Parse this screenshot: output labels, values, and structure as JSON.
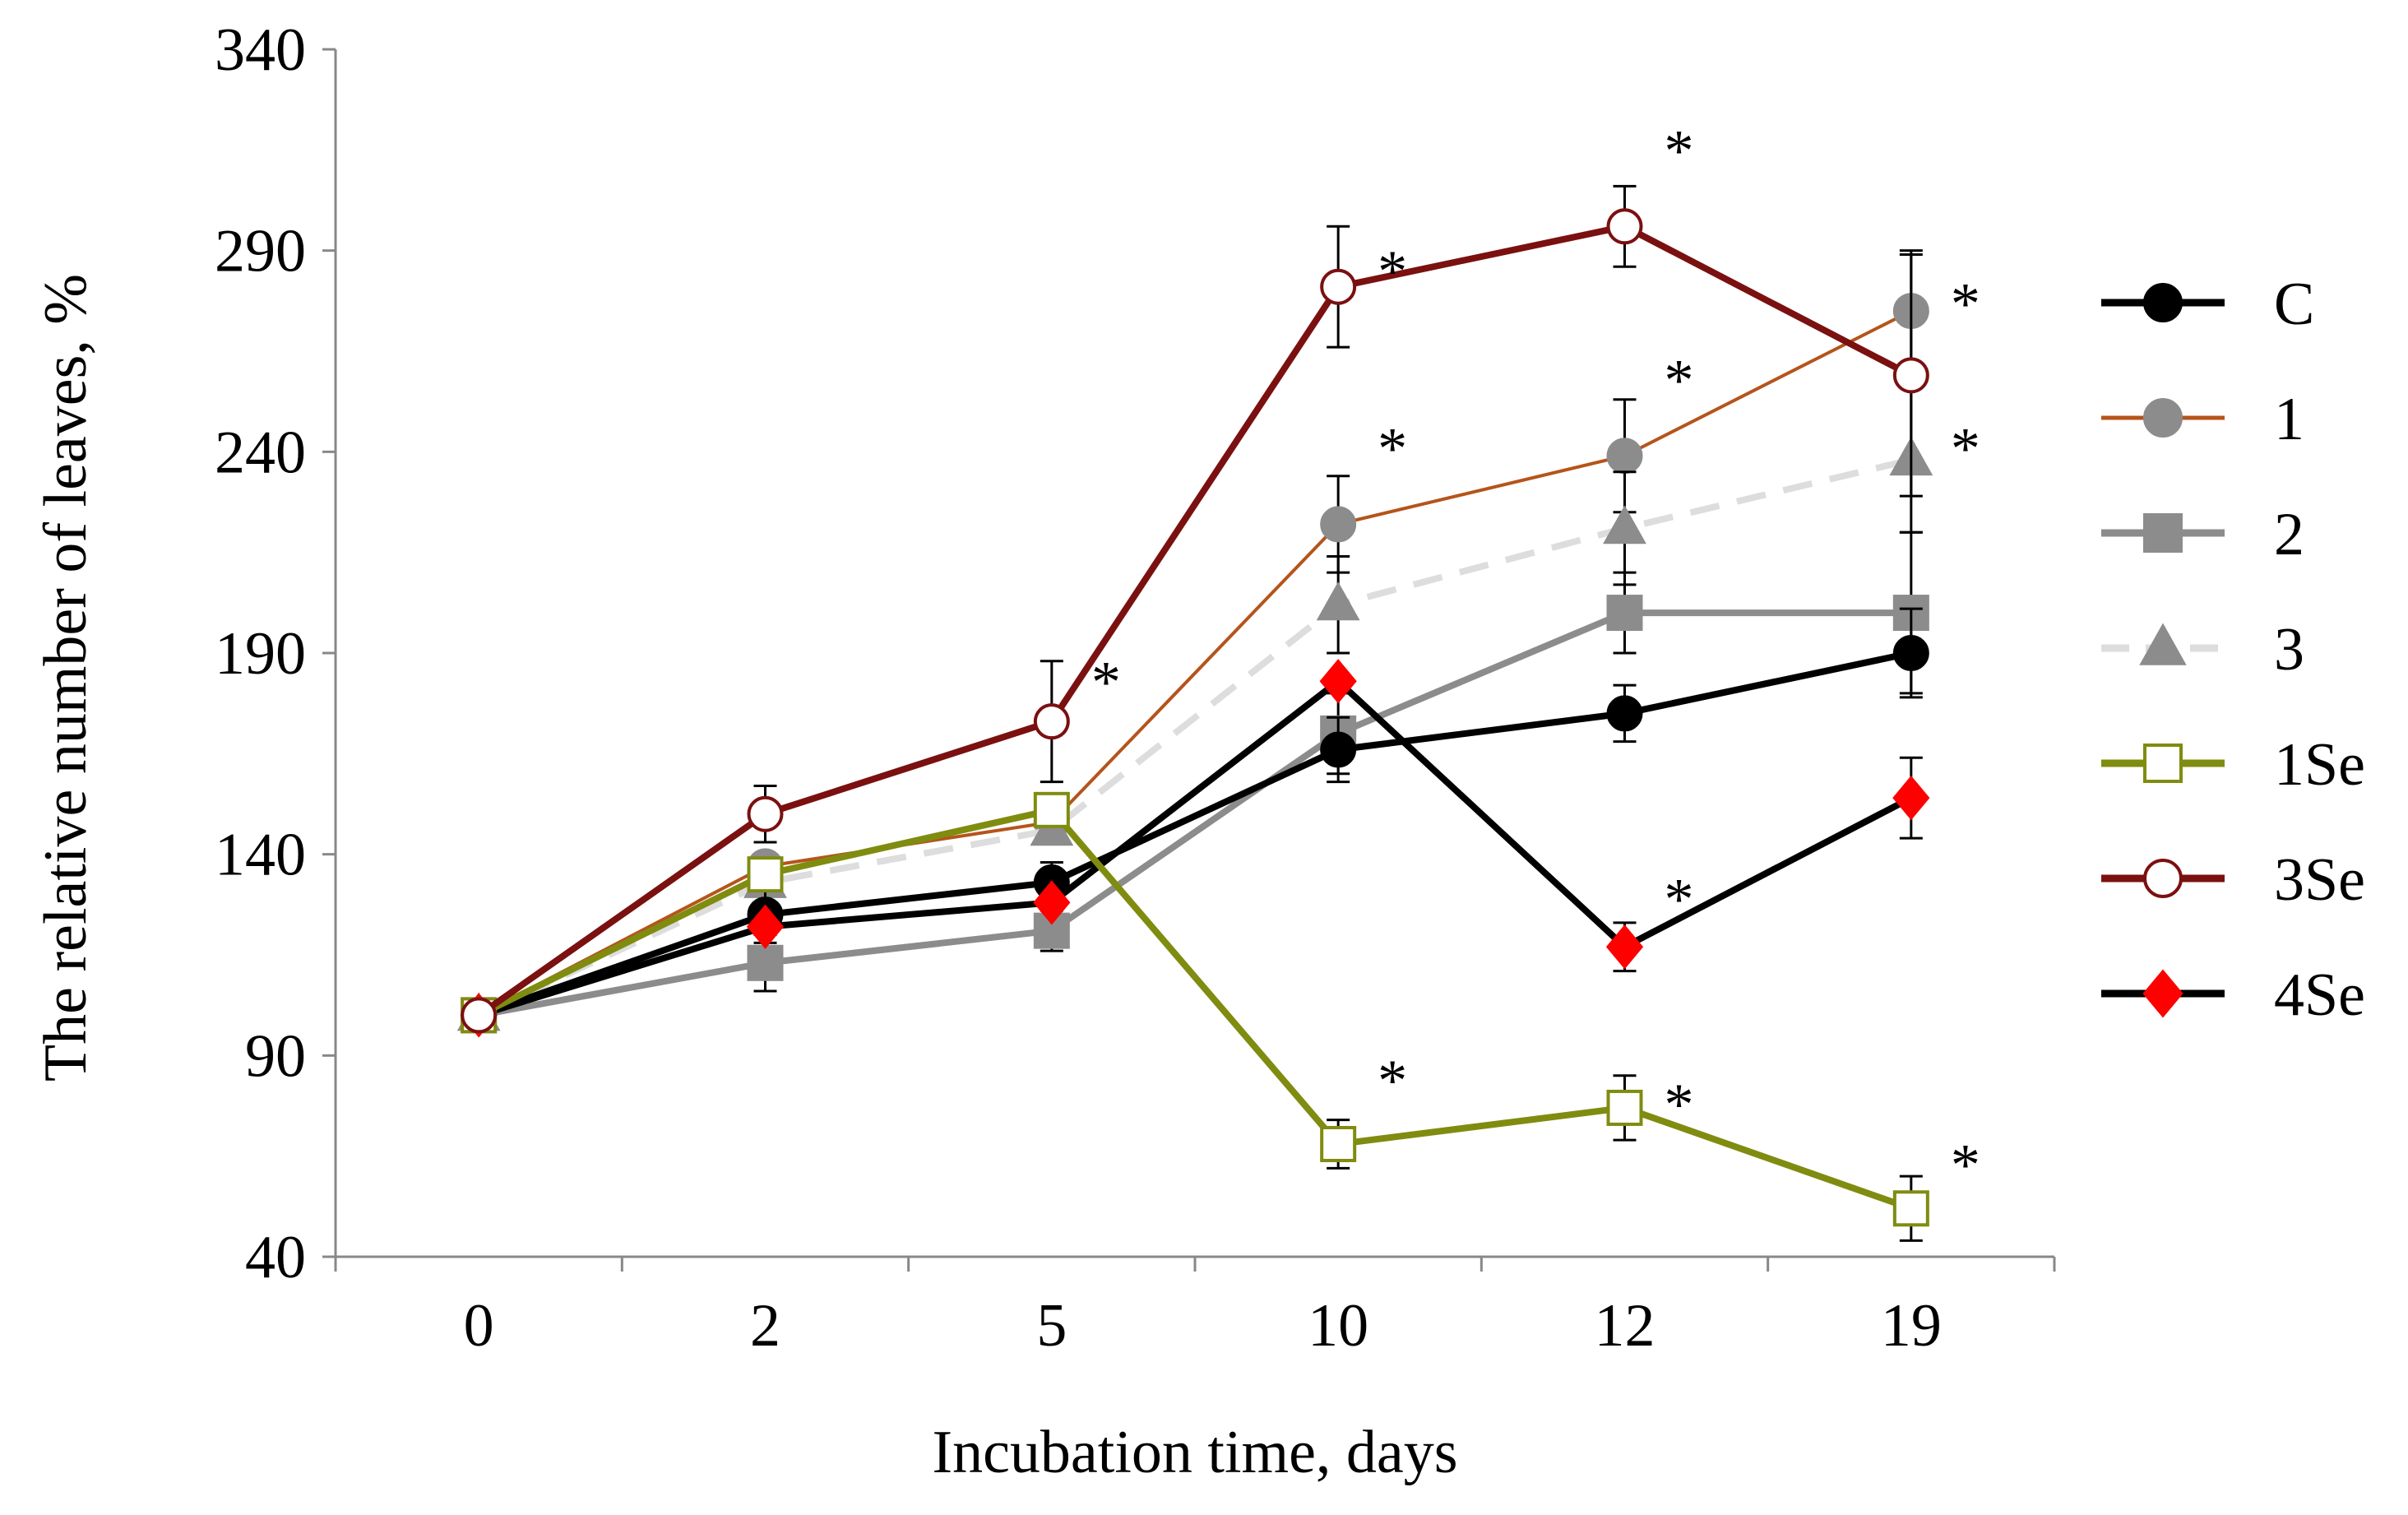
{
  "chart_data": {
    "type": "line",
    "title": "",
    "xlabel": "Incubation time, days",
    "ylabel": "The relative number of leaves, %",
    "categories": [
      "0",
      "2",
      "5",
      "10",
      "12",
      "19"
    ],
    "yticks": [
      40,
      90,
      140,
      190,
      240,
      290,
      340
    ],
    "ylim": [
      40,
      340
    ],
    "grid": false,
    "legend_position": "right",
    "series": [
      {
        "name": "1",
        "color": "#b5541b",
        "line_color": "#b5541b",
        "marker": "circle",
        "marker_fill": "#8c8c8c",
        "marker_stroke": "#8c8c8c",
        "dashed": false,
        "thin": true,
        "values": [
          100,
          137,
          148,
          222,
          239,
          275
        ],
        "errors": [
          0,
          0,
          0,
          12,
          14,
          15
        ]
      },
      {
        "name": "3",
        "color": "#dddddd",
        "line_color": "#dddddd",
        "marker": "triangle",
        "marker_fill": "#8c8c8c",
        "marker_stroke": "#8c8c8c",
        "dashed": true,
        "thin": false,
        "values": [
          100,
          133,
          146,
          202,
          221,
          238
        ],
        "errors": [
          0,
          0,
          0,
          12,
          14,
          18
        ]
      },
      {
        "name": "2",
        "color": "#8c8c8c",
        "line_color": "#8c8c8c",
        "marker": "square",
        "marker_fill": "#8c8c8c",
        "marker_stroke": "#8c8c8c",
        "dashed": false,
        "thin": false,
        "values": [
          100,
          113,
          121,
          170,
          200,
          200
        ],
        "errors": [
          0,
          7,
          5,
          10,
          10,
          20
        ]
      },
      {
        "name": "C",
        "color": "#000000",
        "line_color": "#000000",
        "marker": "circle",
        "marker_fill": "#000000",
        "marker_stroke": "#000000",
        "dashed": false,
        "thin": false,
        "values": [
          100,
          125,
          133,
          166,
          175,
          190
        ],
        "errors": [
          0,
          7,
          5,
          8,
          7,
          11
        ]
      },
      {
        "name": "4Se",
        "color": "#000000",
        "line_color": "#000000",
        "marker": "diamond",
        "marker_fill": "#ff0000",
        "marker_stroke": "#ff0000",
        "dashed": false,
        "thin": false,
        "values": [
          100,
          122,
          128,
          183,
          117,
          154
        ],
        "errors": [
          0,
          0,
          0,
          0,
          6,
          10
        ]
      },
      {
        "name": "1Se",
        "color": "#7f8c10",
        "line_color": "#7f8c10",
        "marker": "square",
        "marker_fill": "#ffffff",
        "marker_stroke": "#7f8c10",
        "dashed": false,
        "thin": false,
        "values": [
          100,
          135,
          151,
          68,
          77,
          52
        ],
        "errors": [
          0,
          0,
          0,
          6,
          8,
          8
        ]
      },
      {
        "name": "3Se",
        "color": "#7b1010",
        "line_color": "#7b1010",
        "marker": "circle",
        "marker_fill": "#ffffff",
        "marker_stroke": "#7b1010",
        "dashed": false,
        "thin": false,
        "values": [
          100,
          150,
          173,
          281,
          296,
          259
        ],
        "errors": [
          0,
          7,
          15,
          15,
          10,
          30
        ]
      }
    ],
    "legend_order": [
      "C",
      "1",
      "2",
      "3",
      "1Se",
      "3Se",
      "4Se"
    ],
    "significance_markers": [
      {
        "label": "*",
        "category": "5",
        "value": 184
      },
      {
        "label": "*",
        "category": "10",
        "value": 286
      },
      {
        "label": "*",
        "category": "10",
        "value": 242
      },
      {
        "label": "*",
        "category": "10",
        "value": 85
      },
      {
        "label": "*",
        "category": "12",
        "value": 316
      },
      {
        "label": "*",
        "category": "12",
        "value": 259
      },
      {
        "label": "*",
        "category": "12",
        "value": 130
      },
      {
        "label": "*",
        "category": "12",
        "value": 79
      },
      {
        "label": "*",
        "category": "19",
        "value": 278
      },
      {
        "label": "*",
        "category": "19",
        "value": 242
      },
      {
        "label": "*",
        "category": "19",
        "value": 64
      }
    ]
  }
}
